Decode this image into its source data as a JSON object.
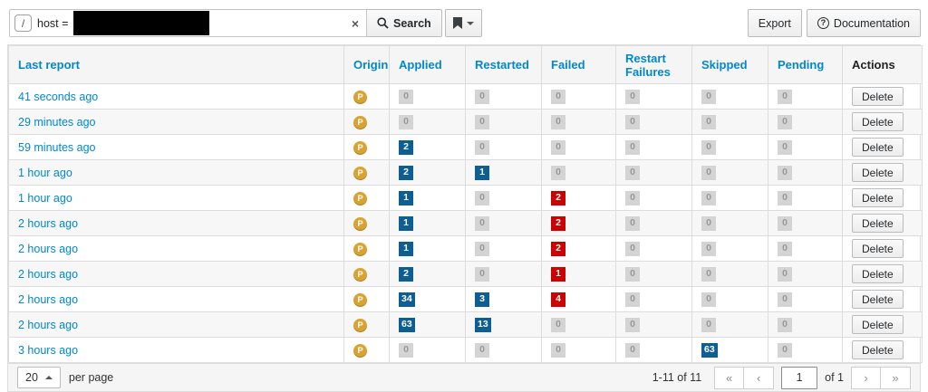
{
  "toolbar": {
    "shortcut_key": "/",
    "search_query": "host = ",
    "clear_icon": "×",
    "search_button_label": "Search",
    "bookmark_icon": "bookmark",
    "export_button_label": "Export",
    "documentation_button_label": "Documentation",
    "documentation_icon": "?"
  },
  "table": {
    "headers": [
      {
        "label": "Last report",
        "link": true
      },
      {
        "label": "Origin",
        "link": true
      },
      {
        "label": "Applied",
        "link": true
      },
      {
        "label": "Restarted",
        "link": true
      },
      {
        "label": "Failed",
        "link": true
      },
      {
        "label": "Restart Failures",
        "link": true
      },
      {
        "label": "Skipped",
        "link": true
      },
      {
        "label": "Pending",
        "link": true
      },
      {
        "label": "Actions",
        "link": false
      }
    ],
    "count_columns": [
      "applied",
      "restarted",
      "failed",
      "restart_failures",
      "skipped",
      "pending"
    ],
    "action_label": "Delete",
    "origin_label": "P",
    "rows": [
      {
        "last_report": "41 seconds ago",
        "origin": "P",
        "applied": {
          "v": "0",
          "c": "zero"
        },
        "restarted": {
          "v": "0",
          "c": "zero"
        },
        "failed": {
          "v": "0",
          "c": "zero"
        },
        "restart_failures": {
          "v": "0",
          "c": "zero"
        },
        "skipped": {
          "v": "0",
          "c": "zero"
        },
        "pending": {
          "v": "0",
          "c": "zero"
        }
      },
      {
        "last_report": "29 minutes ago",
        "origin": "P",
        "applied": {
          "v": "0",
          "c": "zero"
        },
        "restarted": {
          "v": "0",
          "c": "zero"
        },
        "failed": {
          "v": "0",
          "c": "zero"
        },
        "restart_failures": {
          "v": "0",
          "c": "zero"
        },
        "skipped": {
          "v": "0",
          "c": "zero"
        },
        "pending": {
          "v": "0",
          "c": "zero"
        }
      },
      {
        "last_report": "59 minutes ago",
        "origin": "P",
        "applied": {
          "v": "2",
          "c": "info"
        },
        "restarted": {
          "v": "0",
          "c": "zero"
        },
        "failed": {
          "v": "0",
          "c": "zero"
        },
        "restart_failures": {
          "v": "0",
          "c": "zero"
        },
        "skipped": {
          "v": "0",
          "c": "zero"
        },
        "pending": {
          "v": "0",
          "c": "zero"
        }
      },
      {
        "last_report": "1 hour ago",
        "origin": "P",
        "applied": {
          "v": "2",
          "c": "info"
        },
        "restarted": {
          "v": "1",
          "c": "info"
        },
        "failed": {
          "v": "0",
          "c": "zero"
        },
        "restart_failures": {
          "v": "0",
          "c": "zero"
        },
        "skipped": {
          "v": "0",
          "c": "zero"
        },
        "pending": {
          "v": "0",
          "c": "zero"
        }
      },
      {
        "last_report": "1 hour ago",
        "origin": "P",
        "applied": {
          "v": "1",
          "c": "info"
        },
        "restarted": {
          "v": "0",
          "c": "zero"
        },
        "failed": {
          "v": "2",
          "c": "danger"
        },
        "restart_failures": {
          "v": "0",
          "c": "zero"
        },
        "skipped": {
          "v": "0",
          "c": "zero"
        },
        "pending": {
          "v": "0",
          "c": "zero"
        }
      },
      {
        "last_report": "2 hours ago",
        "origin": "P",
        "applied": {
          "v": "1",
          "c": "info"
        },
        "restarted": {
          "v": "0",
          "c": "zero"
        },
        "failed": {
          "v": "2",
          "c": "danger"
        },
        "restart_failures": {
          "v": "0",
          "c": "zero"
        },
        "skipped": {
          "v": "0",
          "c": "zero"
        },
        "pending": {
          "v": "0",
          "c": "zero"
        }
      },
      {
        "last_report": "2 hours ago",
        "origin": "P",
        "applied": {
          "v": "1",
          "c": "info"
        },
        "restarted": {
          "v": "0",
          "c": "zero"
        },
        "failed": {
          "v": "2",
          "c": "danger"
        },
        "restart_failures": {
          "v": "0",
          "c": "zero"
        },
        "skipped": {
          "v": "0",
          "c": "zero"
        },
        "pending": {
          "v": "0",
          "c": "zero"
        }
      },
      {
        "last_report": "2 hours ago",
        "origin": "P",
        "applied": {
          "v": "2",
          "c": "info"
        },
        "restarted": {
          "v": "0",
          "c": "zero"
        },
        "failed": {
          "v": "1",
          "c": "danger"
        },
        "restart_failures": {
          "v": "0",
          "c": "zero"
        },
        "skipped": {
          "v": "0",
          "c": "zero"
        },
        "pending": {
          "v": "0",
          "c": "zero"
        }
      },
      {
        "last_report": "2 hours ago",
        "origin": "P",
        "applied": {
          "v": "34",
          "c": "info"
        },
        "restarted": {
          "v": "3",
          "c": "info"
        },
        "failed": {
          "v": "4",
          "c": "danger"
        },
        "restart_failures": {
          "v": "0",
          "c": "zero"
        },
        "skipped": {
          "v": "0",
          "c": "zero"
        },
        "pending": {
          "v": "0",
          "c": "zero"
        }
      },
      {
        "last_report": "2 hours ago",
        "origin": "P",
        "applied": {
          "v": "63",
          "c": "info"
        },
        "restarted": {
          "v": "13",
          "c": "info"
        },
        "failed": {
          "v": "0",
          "c": "zero"
        },
        "restart_failures": {
          "v": "0",
          "c": "zero"
        },
        "skipped": {
          "v": "0",
          "c": "zero"
        },
        "pending": {
          "v": "0",
          "c": "zero"
        }
      },
      {
        "last_report": "3 hours ago",
        "origin": "P",
        "applied": {
          "v": "0",
          "c": "zero"
        },
        "restarted": {
          "v": "0",
          "c": "zero"
        },
        "failed": {
          "v": "0",
          "c": "zero"
        },
        "restart_failures": {
          "v": "0",
          "c": "zero"
        },
        "skipped": {
          "v": "63",
          "c": "info"
        },
        "pending": {
          "v": "0",
          "c": "zero"
        }
      }
    ]
  },
  "footer": {
    "per_page_value": "20",
    "per_page_label": "per page",
    "range_label": "1-11 of  11",
    "first_icon": "«",
    "prev_icon": "‹",
    "page_value": "1",
    "of_label": "of 1",
    "next_icon": "›",
    "last_icon": "»"
  },
  "colors": {
    "link": "#0088ce",
    "badge_info": "#0d5e94",
    "badge_danger": "#cc0000",
    "badge_zero_bg": "#d4d4d4",
    "badge_zero_text": "#989898",
    "origin_gold": "#d9a331"
  }
}
